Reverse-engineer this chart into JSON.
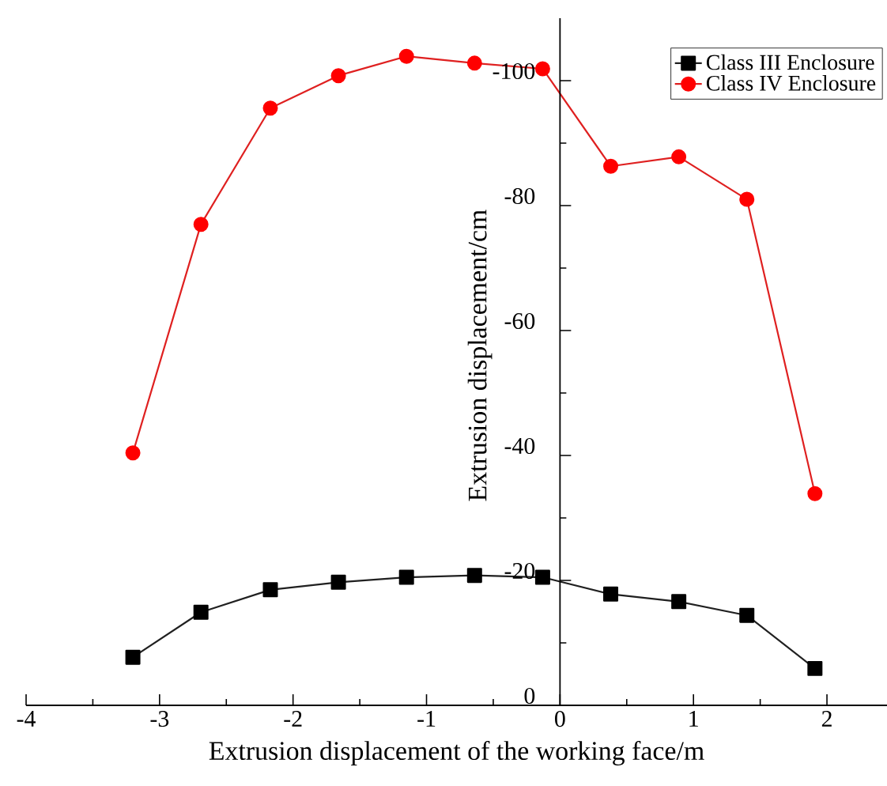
{
  "chart_data": {
    "type": "line",
    "xlabel": "Extrusion displacement of the working face/m",
    "ylabel": "Extrusion displacement/cm",
    "xlim": [
      -4,
      2.45
    ],
    "xticks": [
      -4,
      -3,
      -2,
      -1,
      0,
      1,
      2
    ],
    "ylim": [
      0,
      -110
    ],
    "yticks": [
      0,
      -20,
      -40,
      -60,
      -80,
      -100
    ],
    "legend": "top right",
    "grid": false,
    "series": [
      {
        "name": "Class III Enclosure",
        "color": "#000000",
        "marker": "square",
        "x": [
          -3.2,
          -2.69,
          -2.17,
          -1.66,
          -1.15,
          -0.64,
          -0.13,
          0.38,
          0.89,
          1.4,
          1.91
        ],
        "values": [
          -7.7,
          -14.9,
          -18.5,
          -19.7,
          -20.5,
          -20.8,
          -20.5,
          -17.8,
          -16.6,
          -14.4,
          -5.9
        ]
      },
      {
        "name": "Class IV Enclosure",
        "color": "#ff0000",
        "marker": "circle",
        "x": [
          -3.2,
          -2.69,
          -2.17,
          -1.66,
          -1.15,
          -0.64,
          -0.13,
          0.38,
          0.89,
          1.4,
          1.91
        ],
        "values": [
          -40.4,
          -77.0,
          -95.6,
          -100.8,
          -103.9,
          -102.8,
          -101.9,
          -86.3,
          -87.8,
          -81.0,
          -33.9
        ]
      }
    ]
  }
}
